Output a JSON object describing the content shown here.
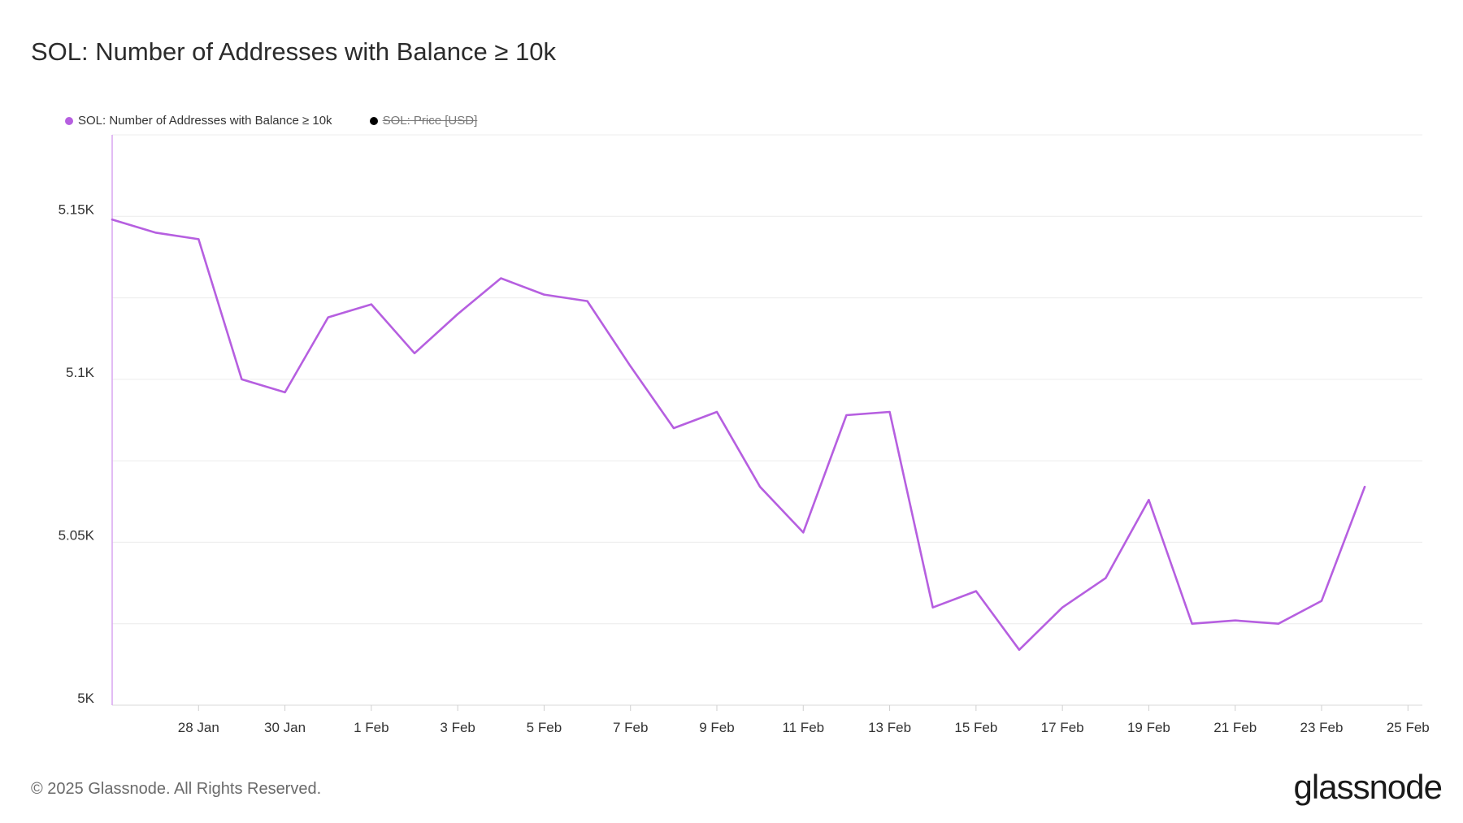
{
  "title": "SOL: Number of Addresses with Balance ≥ 10k",
  "legend": [
    {
      "label": "SOL: Number of Addresses with Balance ≥ 10k",
      "color": "#b65fe0",
      "hidden": false
    },
    {
      "label": "SOL: Price [USD]",
      "color": "#000000",
      "hidden": true
    }
  ],
  "footer": {
    "copyright": "© 2025 Glassnode. All Rights Reserved.",
    "brand": "glassnode"
  },
  "chart_data": {
    "type": "line",
    "title": "SOL: Number of Addresses with Balance ≥ 10k",
    "xlabel": "",
    "ylabel": "",
    "ylim": [
      5000,
      5175
    ],
    "yticks": [
      {
        "value": 5000,
        "label": "5K"
      },
      {
        "value": 5050,
        "label": "5.05K"
      },
      {
        "value": 5100,
        "label": "5.1K"
      },
      {
        "value": 5150,
        "label": "5.15K"
      }
    ],
    "xticks": [
      "28 Jan",
      "30 Jan",
      "1 Feb",
      "3 Feb",
      "5 Feb",
      "7 Feb",
      "9 Feb",
      "11 Feb",
      "13 Feb",
      "15 Feb",
      "17 Feb",
      "19 Feb",
      "21 Feb",
      "23 Feb",
      "25 Feb"
    ],
    "x": [
      "2025-01-26",
      "2025-01-27",
      "2025-01-28",
      "2025-01-29",
      "2025-01-30",
      "2025-01-31",
      "2025-02-01",
      "2025-02-02",
      "2025-02-03",
      "2025-02-04",
      "2025-02-05",
      "2025-02-06",
      "2025-02-07",
      "2025-02-08",
      "2025-02-09",
      "2025-02-10",
      "2025-02-11",
      "2025-02-12",
      "2025-02-13",
      "2025-02-14",
      "2025-02-15",
      "2025-02-16",
      "2025-02-17",
      "2025-02-18",
      "2025-02-19",
      "2025-02-20",
      "2025-02-21",
      "2025-02-22",
      "2025-02-23",
      "2025-02-24"
    ],
    "series": [
      {
        "name": "SOL: Number of Addresses with Balance ≥ 10k",
        "color": "#b65fe0",
        "values": [
          5149,
          5145,
          5143,
          5100,
          5096,
          5119,
          5123,
          5108,
          5120,
          5131,
          5126,
          5124,
          5104,
          5085,
          5090,
          5067,
          5053,
          5089,
          5090,
          5030,
          5035,
          5017,
          5030,
          5039,
          5063,
          5025,
          5026,
          5025,
          5032,
          5067
        ]
      }
    ],
    "grid": true,
    "legend_position": "top-left"
  }
}
